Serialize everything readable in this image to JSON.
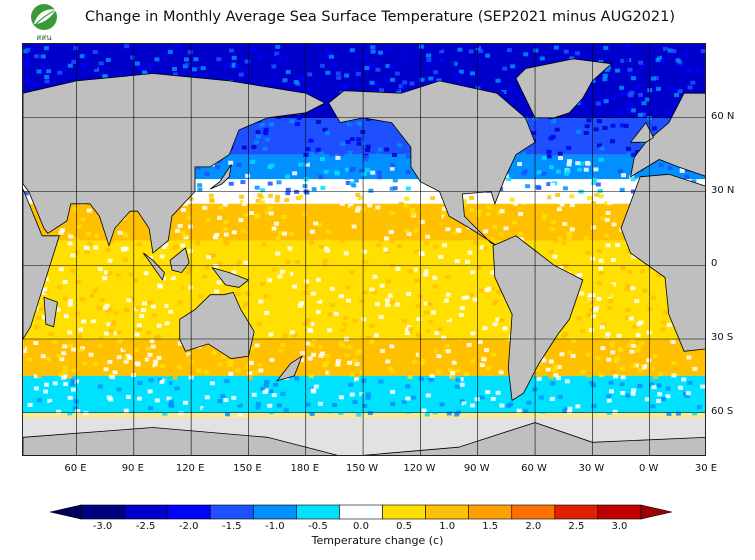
{
  "title": "Change in Monthly Average Sea Surface Temperature (SEP2021 minus AUG2021)",
  "logo": {
    "icon": "leaf-logo",
    "text": "สสน"
  },
  "map": {
    "latitude_labels": [
      "60 N",
      "30 N",
      "0",
      "30 S",
      "60 S"
    ],
    "latitudes": [
      60,
      30,
      0,
      -30,
      -60
    ],
    "longitude_labels": [
      "60 E",
      "90 E",
      "120 E",
      "150 E",
      "180 E",
      "150 W",
      "120 W",
      "90 W",
      "60 W",
      "30 W",
      "0 W",
      "30 E"
    ],
    "lat_range": [
      -78,
      90
    ],
    "lon_range_deg_east": [
      32,
      390
    ],
    "colors": {
      "land": "#bfbfbf",
      "ice": "#e2e2e2",
      "coast": "#000000"
    }
  },
  "colorbar": {
    "title": "Temperature change  (c)",
    "tick_labels": [
      "-3.0",
      "-2.5",
      "-2.0",
      "-1.5",
      "-1.0",
      "-0.5",
      "0.0",
      "0.5",
      "1.0",
      "1.5",
      "2.0",
      "2.5",
      "3.0"
    ],
    "colors": [
      "#000080",
      "#0000cd",
      "#0000ff",
      "#1e50ff",
      "#0090ff",
      "#00e0ff",
      "#ffffff",
      "#ffe000",
      "#ffc000",
      "#ffa000",
      "#ff7000",
      "#e02000",
      "#c00000"
    ]
  }
}
